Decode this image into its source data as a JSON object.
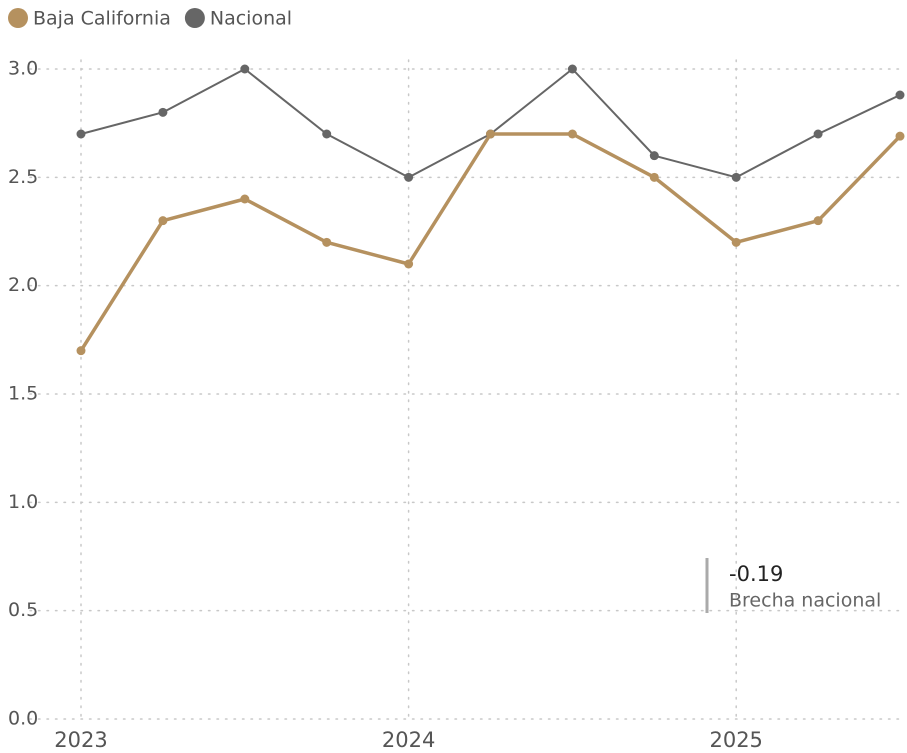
{
  "chart_data": {
    "type": "line",
    "categories": [
      "2023",
      null,
      null,
      null,
      "2024",
      null,
      null,
      null,
      "2025",
      null,
      null
    ],
    "series": [
      {
        "name": "Baja California",
        "color": "#b5915f",
        "values": [
          1.7,
          2.3,
          2.4,
          2.2,
          2.1,
          2.7,
          2.7,
          2.5,
          2.2,
          2.3,
          2.69
        ]
      },
      {
        "name": "Nacional",
        "color": "#666666",
        "values": [
          2.7,
          2.8,
          3.0,
          2.7,
          2.5,
          2.7,
          3.0,
          2.6,
          2.5,
          2.7,
          2.88
        ]
      }
    ],
    "ylim": [
      0,
      3.0
    ],
    "yticks": [
      {
        "value": 0,
        "label": "0.0"
      },
      0.5,
      {
        "value": 1,
        "label": "1.0"
      },
      1.5,
      {
        "value": 2,
        "label": "2.0"
      },
      2.5,
      {
        "value": 3,
        "label": "3.0"
      }
    ],
    "grid": true,
    "legend": "top-left",
    "annotations": [
      {
        "value": "-0.19",
        "label": "Brecha nacional"
      }
    ]
  }
}
